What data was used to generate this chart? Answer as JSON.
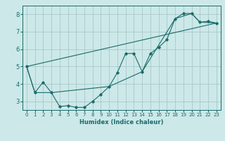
{
  "xlabel": "Humidex (Indice chaleur)",
  "ylabel": "",
  "background_color": "#cce8e8",
  "grid_color": "#aac8c8",
  "line_color": "#1a6b6b",
  "xlim": [
    -0.5,
    23.5
  ],
  "ylim": [
    2.5,
    8.5
  ],
  "xticks": [
    0,
    1,
    2,
    3,
    4,
    5,
    6,
    7,
    8,
    9,
    10,
    11,
    12,
    13,
    14,
    15,
    16,
    17,
    18,
    19,
    20,
    21,
    22,
    23
  ],
  "yticks": [
    3,
    4,
    5,
    6,
    7,
    8
  ],
  "curve1_x": [
    0,
    1,
    2,
    3,
    4,
    5,
    6,
    7,
    8,
    9,
    10,
    11,
    12,
    13,
    14,
    15,
    16,
    17,
    18,
    19,
    20,
    21,
    22,
    23
  ],
  "curve1_y": [
    5.0,
    3.5,
    4.1,
    3.5,
    2.7,
    2.75,
    2.65,
    2.65,
    3.0,
    3.4,
    3.85,
    4.65,
    5.75,
    5.75,
    4.7,
    5.75,
    6.1,
    6.55,
    7.75,
    8.05,
    8.05,
    7.55,
    7.6,
    7.5
  ],
  "curve2_x": [
    0,
    23
  ],
  "curve2_y": [
    5.0,
    7.5
  ],
  "curve3_x": [
    0,
    1,
    3,
    10,
    14,
    18,
    20,
    21,
    23
  ],
  "curve3_y": [
    5.0,
    3.5,
    3.5,
    3.85,
    4.7,
    7.75,
    8.05,
    7.55,
    7.5
  ]
}
